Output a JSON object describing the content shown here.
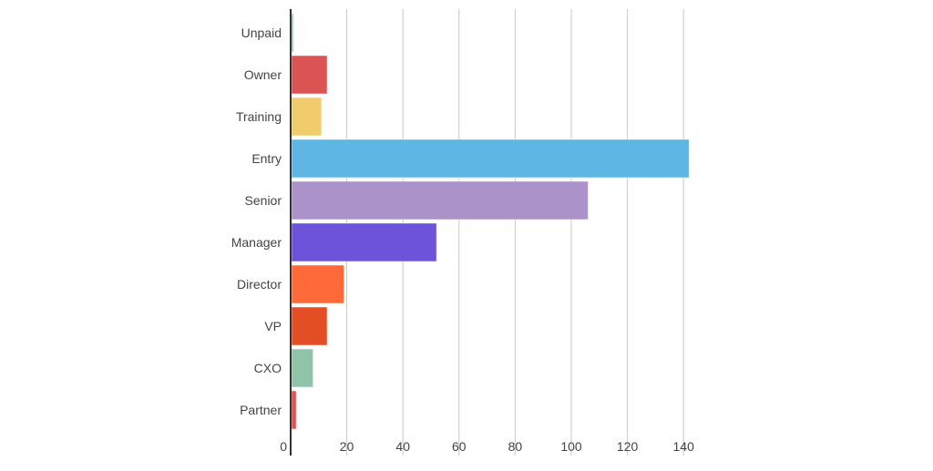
{
  "chart_data": {
    "type": "bar",
    "orientation": "horizontal",
    "categories": [
      "Unpaid",
      "Owner",
      "Training",
      "Entry",
      "Senior",
      "Manager",
      "Director",
      "VP",
      "CXO",
      "Partner"
    ],
    "values": [
      1,
      13,
      11,
      142,
      106,
      52,
      19,
      13,
      8,
      2
    ],
    "colors": [
      "#8fc4a9",
      "#db5454",
      "#f0cc6c",
      "#5eb6e4",
      "#ab92c8",
      "#6d53da",
      "#ff6a38",
      "#e34e24",
      "#8fc4a9",
      "#db5454"
    ],
    "xticks": [
      0,
      20,
      40,
      60,
      80,
      100,
      120,
      140
    ],
    "xlim": [
      0,
      140
    ],
    "grid": true,
    "title": "",
    "xlabel": "",
    "ylabel": ""
  }
}
